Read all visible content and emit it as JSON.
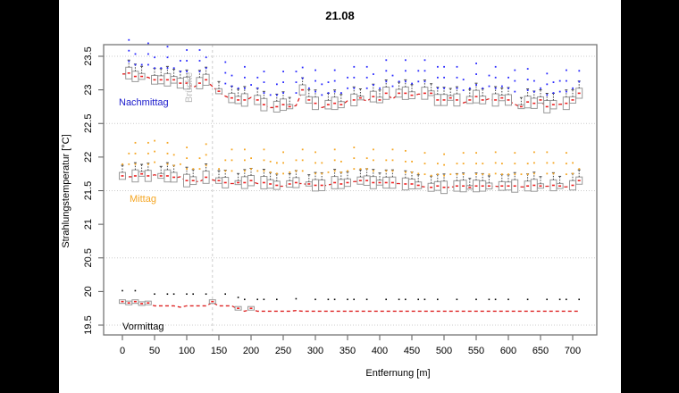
{
  "chart_data": {
    "type": "box",
    "title": "21.08",
    "xlabel": "Entfernung [m]",
    "ylabel": "Strahlungstemperatur [°C]",
    "xlim": [
      -20,
      730
    ],
    "ylim": [
      19.45,
      23.6
    ],
    "x_ticks": [
      0,
      50,
      100,
      150,
      200,
      250,
      300,
      350,
      400,
      450,
      500,
      550,
      600,
      650,
      700
    ],
    "y_ticks": [
      19.5,
      20,
      20.5,
      21,
      21.5,
      22,
      22.5,
      23,
      23.5
    ],
    "y_tick_labels": [
      "19.5",
      "20",
      "20.5",
      "21",
      "21.5",
      "22",
      "22.5",
      "23",
      "23.5"
    ],
    "grid": "horizontal dotted at y ticks 19.5, 20.5, 21.5, 22.5, 23.5",
    "annotations": [
      {
        "text": "Brücke",
        "x": 140,
        "type": "vertical dashed line",
        "color": "#bbbbbb"
      },
      {
        "text": "Nachmittag",
        "color": "#1a1acc",
        "near_y": 22.8
      },
      {
        "text": "Mittag",
        "color": "#f5a623",
        "near_y": 21.33
      },
      {
        "text": "Vormittag",
        "color": "#000000",
        "near_y": 19.52
      }
    ],
    "series": [
      {
        "name": "Nachmittag",
        "point_color": "#2a2aff",
        "trend_color": "#dd2222",
        "x": [
          0,
          10,
          20,
          30,
          40,
          50,
          60,
          70,
          80,
          90,
          100,
          110,
          120,
          130,
          150,
          160,
          170,
          180,
          190,
          200,
          210,
          220,
          230,
          240,
          250,
          260,
          270,
          280,
          290,
          300,
          310,
          320,
          330,
          340,
          350,
          360,
          370,
          380,
          390,
          400,
          410,
          420,
          430,
          440,
          450,
          460,
          470,
          480,
          490,
          500,
          510,
          520,
          530,
          540,
          550,
          560,
          570,
          580,
          590,
          600,
          610,
          620,
          630,
          640,
          650,
          660,
          670,
          680,
          690,
          700,
          710
        ],
        "median": [
          23.25,
          23.25,
          23.2,
          23.2,
          23.2,
          23.15,
          23.15,
          23.15,
          23.15,
          23.1,
          23.1,
          23.05,
          23.1,
          23.15,
          22.98,
          22.92,
          22.88,
          22.85,
          22.85,
          22.9,
          22.85,
          22.78,
          22.75,
          22.75,
          22.78,
          22.75,
          22.78,
          23.0,
          22.85,
          22.8,
          22.75,
          22.78,
          22.8,
          22.78,
          22.85,
          22.85,
          22.88,
          22.85,
          22.9,
          22.85,
          22.95,
          22.88,
          22.95,
          22.95,
          22.92,
          22.95,
          22.95,
          22.95,
          22.85,
          22.85,
          22.88,
          22.85,
          22.82,
          22.85,
          22.9,
          22.85,
          22.88,
          22.85,
          22.88,
          22.85,
          22.8,
          22.75,
          22.82,
          22.8,
          22.85,
          22.75,
          22.78,
          22.8,
          22.8,
          22.85,
          22.95
        ]
      },
      {
        "name": "Mittag",
        "point_color": "#f5a623",
        "trend_color": "#dd2222",
        "x": [
          0,
          10,
          20,
          30,
          40,
          50,
          60,
          70,
          80,
          90,
          100,
          110,
          120,
          130,
          150,
          160,
          170,
          180,
          190,
          200,
          210,
          220,
          230,
          240,
          250,
          260,
          270,
          280,
          290,
          300,
          310,
          320,
          330,
          340,
          350,
          360,
          370,
          380,
          390,
          400,
          410,
          420,
          430,
          440,
          450,
          460,
          470,
          480,
          490,
          500,
          510,
          520,
          530,
          540,
          550,
          560,
          570,
          580,
          590,
          600,
          610,
          620,
          630,
          640,
          650,
          660,
          670,
          680,
          690,
          700,
          710
        ],
        "median": [
          21.72,
          21.72,
          21.72,
          21.75,
          21.72,
          21.75,
          21.72,
          21.72,
          21.7,
          21.72,
          21.65,
          21.65,
          21.65,
          21.7,
          21.65,
          21.62,
          21.62,
          21.62,
          21.62,
          21.65,
          21.62,
          21.62,
          21.6,
          21.58,
          21.58,
          21.6,
          21.62,
          21.62,
          21.6,
          21.58,
          21.58,
          21.6,
          21.62,
          21.6,
          21.62,
          21.65,
          21.65,
          21.65,
          21.62,
          21.62,
          21.62,
          21.62,
          21.62,
          21.6,
          21.6,
          21.58,
          21.57,
          21.55,
          21.57,
          21.55,
          21.57,
          21.57,
          21.57,
          21.55,
          21.57,
          21.57,
          21.57,
          21.58,
          21.57,
          21.57,
          21.57,
          21.57,
          21.57,
          21.58,
          21.57,
          21.58,
          21.58,
          21.57,
          21.57,
          21.58,
          21.65
        ]
      },
      {
        "name": "Vormittag",
        "point_color": "#000000",
        "trend_color": "#dd2222",
        "x": [
          0,
          10,
          20,
          30,
          40,
          50,
          60,
          70,
          80,
          90,
          100,
          110,
          120,
          130,
          140,
          150,
          160,
          170,
          180,
          190,
          200,
          210,
          220,
          230,
          240,
          250,
          260,
          270,
          280,
          290,
          300,
          310,
          320,
          330,
          340,
          350,
          360,
          370,
          380,
          390,
          400,
          410,
          420,
          430,
          440,
          450,
          460,
          470,
          480,
          490,
          500,
          510,
          520,
          530,
          540,
          550,
          560,
          570,
          580,
          590,
          600,
          610,
          620,
          630,
          640,
          650,
          660,
          670,
          680,
          690,
          700,
          710
        ],
        "median": [
          19.85,
          19.83,
          19.85,
          19.82,
          19.83,
          19.8,
          19.8,
          19.8,
          19.8,
          19.78,
          19.8,
          19.8,
          19.8,
          19.8,
          19.85,
          19.8,
          19.8,
          19.8,
          19.75,
          19.72,
          19.75,
          19.72,
          19.72,
          19.72,
          19.72,
          19.72,
          19.72,
          19.73,
          19.72,
          19.72,
          19.72,
          19.72,
          19.72,
          19.72,
          19.72,
          19.72,
          19.72,
          19.72,
          19.72,
          19.72,
          19.72,
          19.72,
          19.72,
          19.72,
          19.72,
          19.72,
          19.72,
          19.72,
          19.72,
          19.72,
          19.72,
          19.72,
          19.72,
          19.72,
          19.72,
          19.72,
          19.72,
          19.72,
          19.72,
          19.72,
          19.72,
          19.72,
          19.72,
          19.72,
          19.72,
          19.72,
          19.72,
          19.72,
          19.72,
          19.72,
          19.72,
          19.72
        ]
      }
    ]
  },
  "labels": {
    "title": "21.08",
    "xlabel": "Entfernung [m]",
    "ylabel": "Strahlungstemperatur [°C]",
    "bridge": "Brücke",
    "nachmittag": "Nachmittag",
    "mittag": "Mittag",
    "vormittag": "Vormittag"
  }
}
